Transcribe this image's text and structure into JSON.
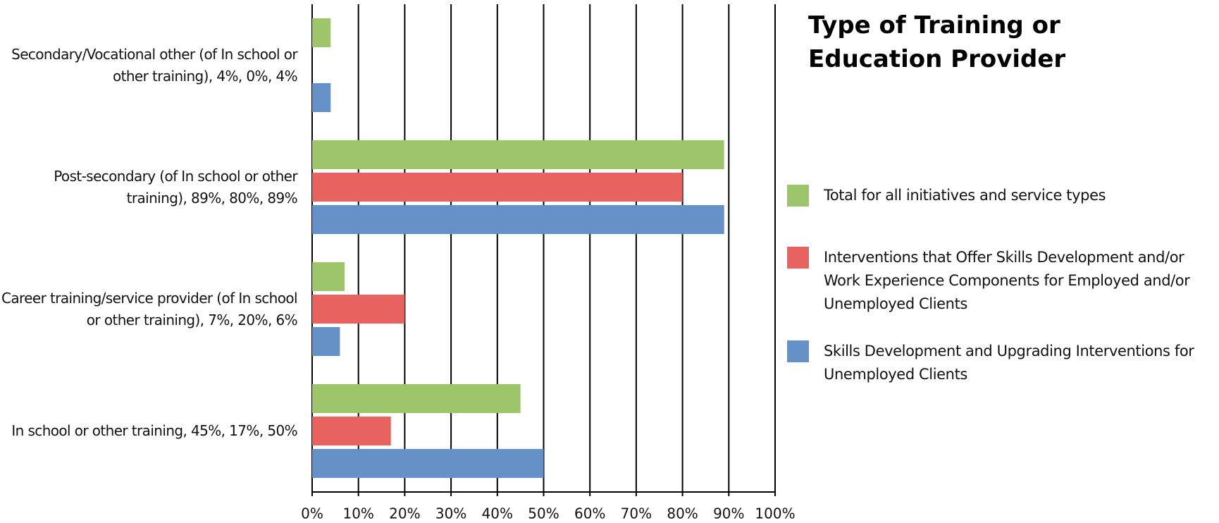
{
  "chart_data": {
    "type": "bar",
    "orientation": "horizontal",
    "title": "Type of Training or Education Provider",
    "categories": [
      "Secondary/Vocational other (of In school or other training), 4%, 0%, 4%",
      "Post-secondary (of In school or other training), 89%, 80%, 89%",
      "Career training/service provider (of In school or other training), 7%, 20%, 6%",
      "In school or other training, 45%, 17%, 50%"
    ],
    "series": [
      {
        "name": "Total for all initiatives and service types",
        "color": "#9dc66b",
        "values": [
          4,
          89,
          7,
          45
        ]
      },
      {
        "name": "Interventions that Offer Skills Development and/or Work Experience Components for Employed and/or Unemployed Clients",
        "color": "#e8625f",
        "values": [
          0,
          80,
          20,
          17
        ]
      },
      {
        "name": "Skills Development and Upgrading Interventions for Unemployed Clients",
        "color": "#6690c8",
        "values": [
          4,
          89,
          6,
          50
        ]
      }
    ],
    "xlim": [
      0,
      100
    ],
    "xticks": [
      {
        "value": 0,
        "label": "0%"
      },
      {
        "value": 10,
        "label": "10%"
      },
      {
        "value": 20,
        "label": "20%"
      },
      {
        "value": 30,
        "label": "30%"
      },
      {
        "value": 40,
        "label": "40%"
      },
      {
        "value": 50,
        "label": "50%"
      },
      {
        "value": 60,
        "label": "60%"
      },
      {
        "value": 70,
        "label": "70%"
      },
      {
        "value": 80,
        "label": "80%"
      },
      {
        "value": 90,
        "label": "90%"
      },
      {
        "value": 100,
        "label": "100%"
      }
    ],
    "grid": true,
    "legend": "right"
  }
}
